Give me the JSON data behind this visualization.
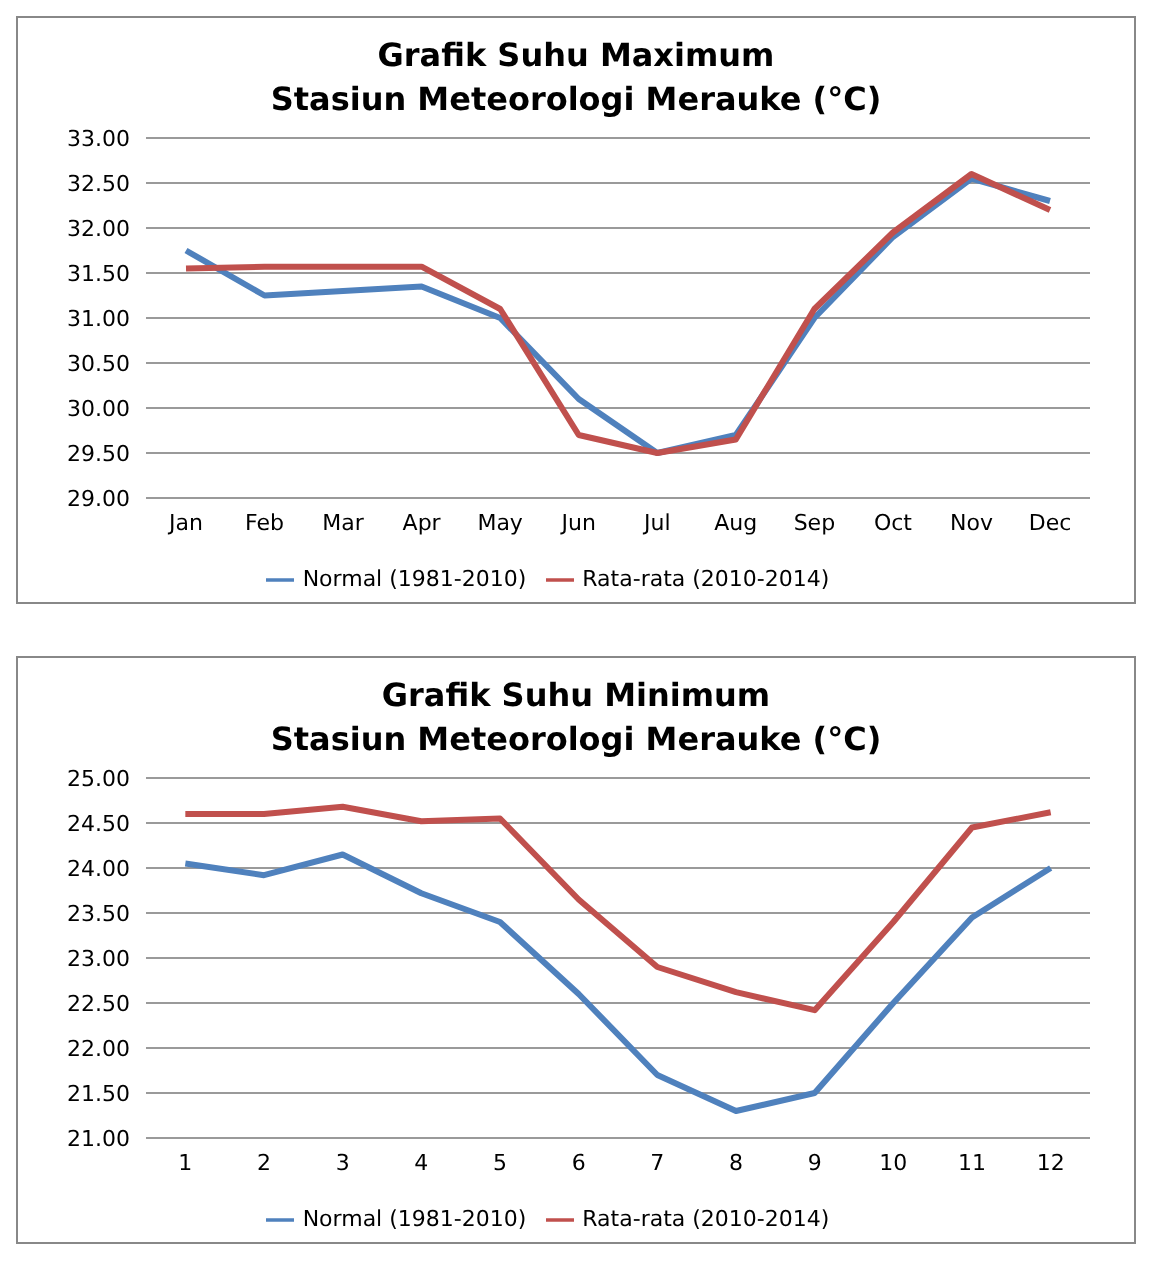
{
  "chart_data": [
    {
      "type": "line",
      "title": "Grafik Suhu Maximum\nStasiun Meteorologi Merauke (°C)",
      "categories": [
        "Jan",
        "Feb",
        "Mar",
        "Apr",
        "May",
        "Jun",
        "Jul",
        "Aug",
        "Sep",
        "Oct",
        "Nov",
        "Dec"
      ],
      "series": [
        {
          "name": "Normal (1981-2010)",
          "color": "#4f81bd",
          "values": [
            31.75,
            31.25,
            31.3,
            31.35,
            31.0,
            30.1,
            29.5,
            29.7,
            31.0,
            31.9,
            32.55,
            32.3
          ]
        },
        {
          "name": "Rata-rata (2010-2014)",
          "color": "#c0504d",
          "values": [
            31.55,
            31.57,
            31.57,
            31.57,
            31.1,
            29.7,
            29.5,
            29.65,
            31.1,
            31.95,
            32.6,
            32.2
          ]
        }
      ],
      "ylim": [
        29,
        33
      ],
      "yticks": [
        {
          "value": 29,
          "label": "29.00"
        },
        {
          "value": 29.5,
          "label": "29.50"
        },
        {
          "value": 30,
          "label": "30.00"
        },
        {
          "value": 30.5,
          "label": "30.50"
        },
        {
          "value": 31,
          "label": "31.00"
        },
        {
          "value": 31.5,
          "label": "31.50"
        },
        {
          "value": 32,
          "label": "32.00"
        },
        {
          "value": 32.5,
          "label": "32.50"
        },
        {
          "value": 33,
          "label": "33.00"
        }
      ],
      "grid": "y",
      "legend": "bottom",
      "marker": "none",
      "line_style": "solid"
    },
    {
      "type": "line",
      "title": "Grafik Suhu Minimum\nStasiun Meteorologi Merauke (°C)",
      "x": [
        1,
        2,
        3,
        4,
        5,
        6,
        7,
        8,
        9,
        10,
        11,
        12
      ],
      "xlim": [
        0.5,
        12.5
      ],
      "xticks": [
        1,
        2,
        3,
        4,
        5,
        6,
        7,
        8,
        9,
        10,
        11,
        12
      ],
      "series": [
        {
          "name": "Normal (1981-2010)",
          "color": "#4f81bd",
          "values": [
            24.05,
            23.92,
            24.15,
            23.72,
            23.4,
            22.6,
            21.7,
            21.3,
            21.5,
            22.5,
            23.45,
            24.0
          ]
        },
        {
          "name": "Rata-rata (2010-2014)",
          "color": "#c0504d",
          "values": [
            24.6,
            24.6,
            24.68,
            24.52,
            24.55,
            23.65,
            22.9,
            22.62,
            22.42,
            23.4,
            24.45,
            24.62
          ]
        }
      ],
      "ylim": [
        21,
        25
      ],
      "yticks": [
        {
          "value": 21,
          "label": "21.00"
        },
        {
          "value": 21.5,
          "label": "21.50"
        },
        {
          "value": 22,
          "label": "22.00"
        },
        {
          "value": 22.5,
          "label": "22.50"
        },
        {
          "value": 23,
          "label": "23.00"
        },
        {
          "value": 23.5,
          "label": "23.50"
        },
        {
          "value": 24,
          "label": "24.00"
        },
        {
          "value": 24.5,
          "label": "24.50"
        },
        {
          "value": 25,
          "label": "25.00"
        }
      ],
      "grid": "y",
      "legend": "bottom",
      "marker": "none",
      "line_style": "solid"
    }
  ]
}
